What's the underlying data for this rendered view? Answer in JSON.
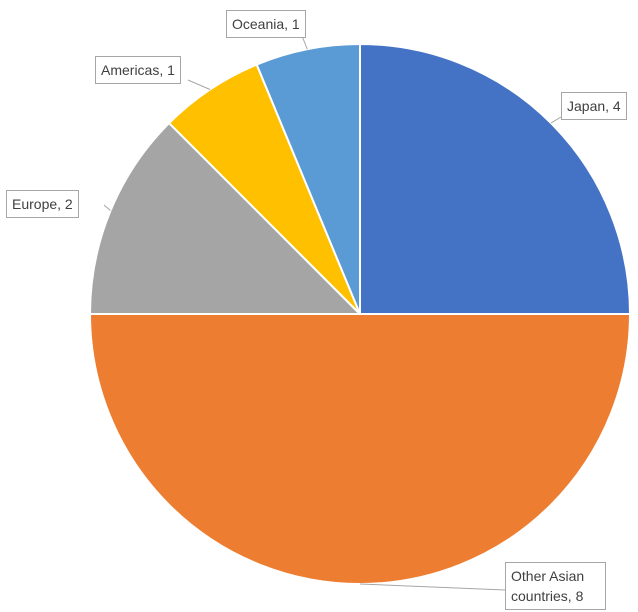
{
  "chart_data": {
    "type": "pie",
    "title": "",
    "slices": [
      {
        "category": "Japan",
        "value": 4,
        "color": "#4472C4",
        "label": "Japan, 4"
      },
      {
        "category": "Other Asian countries",
        "value": 8,
        "color": "#ED7D31",
        "label": "Other Asian countries, 8"
      },
      {
        "category": "Europe",
        "value": 2,
        "color": "#A5A5A5",
        "label": "Europe, 2"
      },
      {
        "category": "Americas",
        "value": 1,
        "color": "#FFC000",
        "label": "Americas, 1"
      },
      {
        "category": "Oceania",
        "value": 1,
        "color": "#5B9BD5",
        "label": "Oceania, 1"
      }
    ],
    "start_angle_deg": 0,
    "direction": "clockwise",
    "legend": "none"
  }
}
